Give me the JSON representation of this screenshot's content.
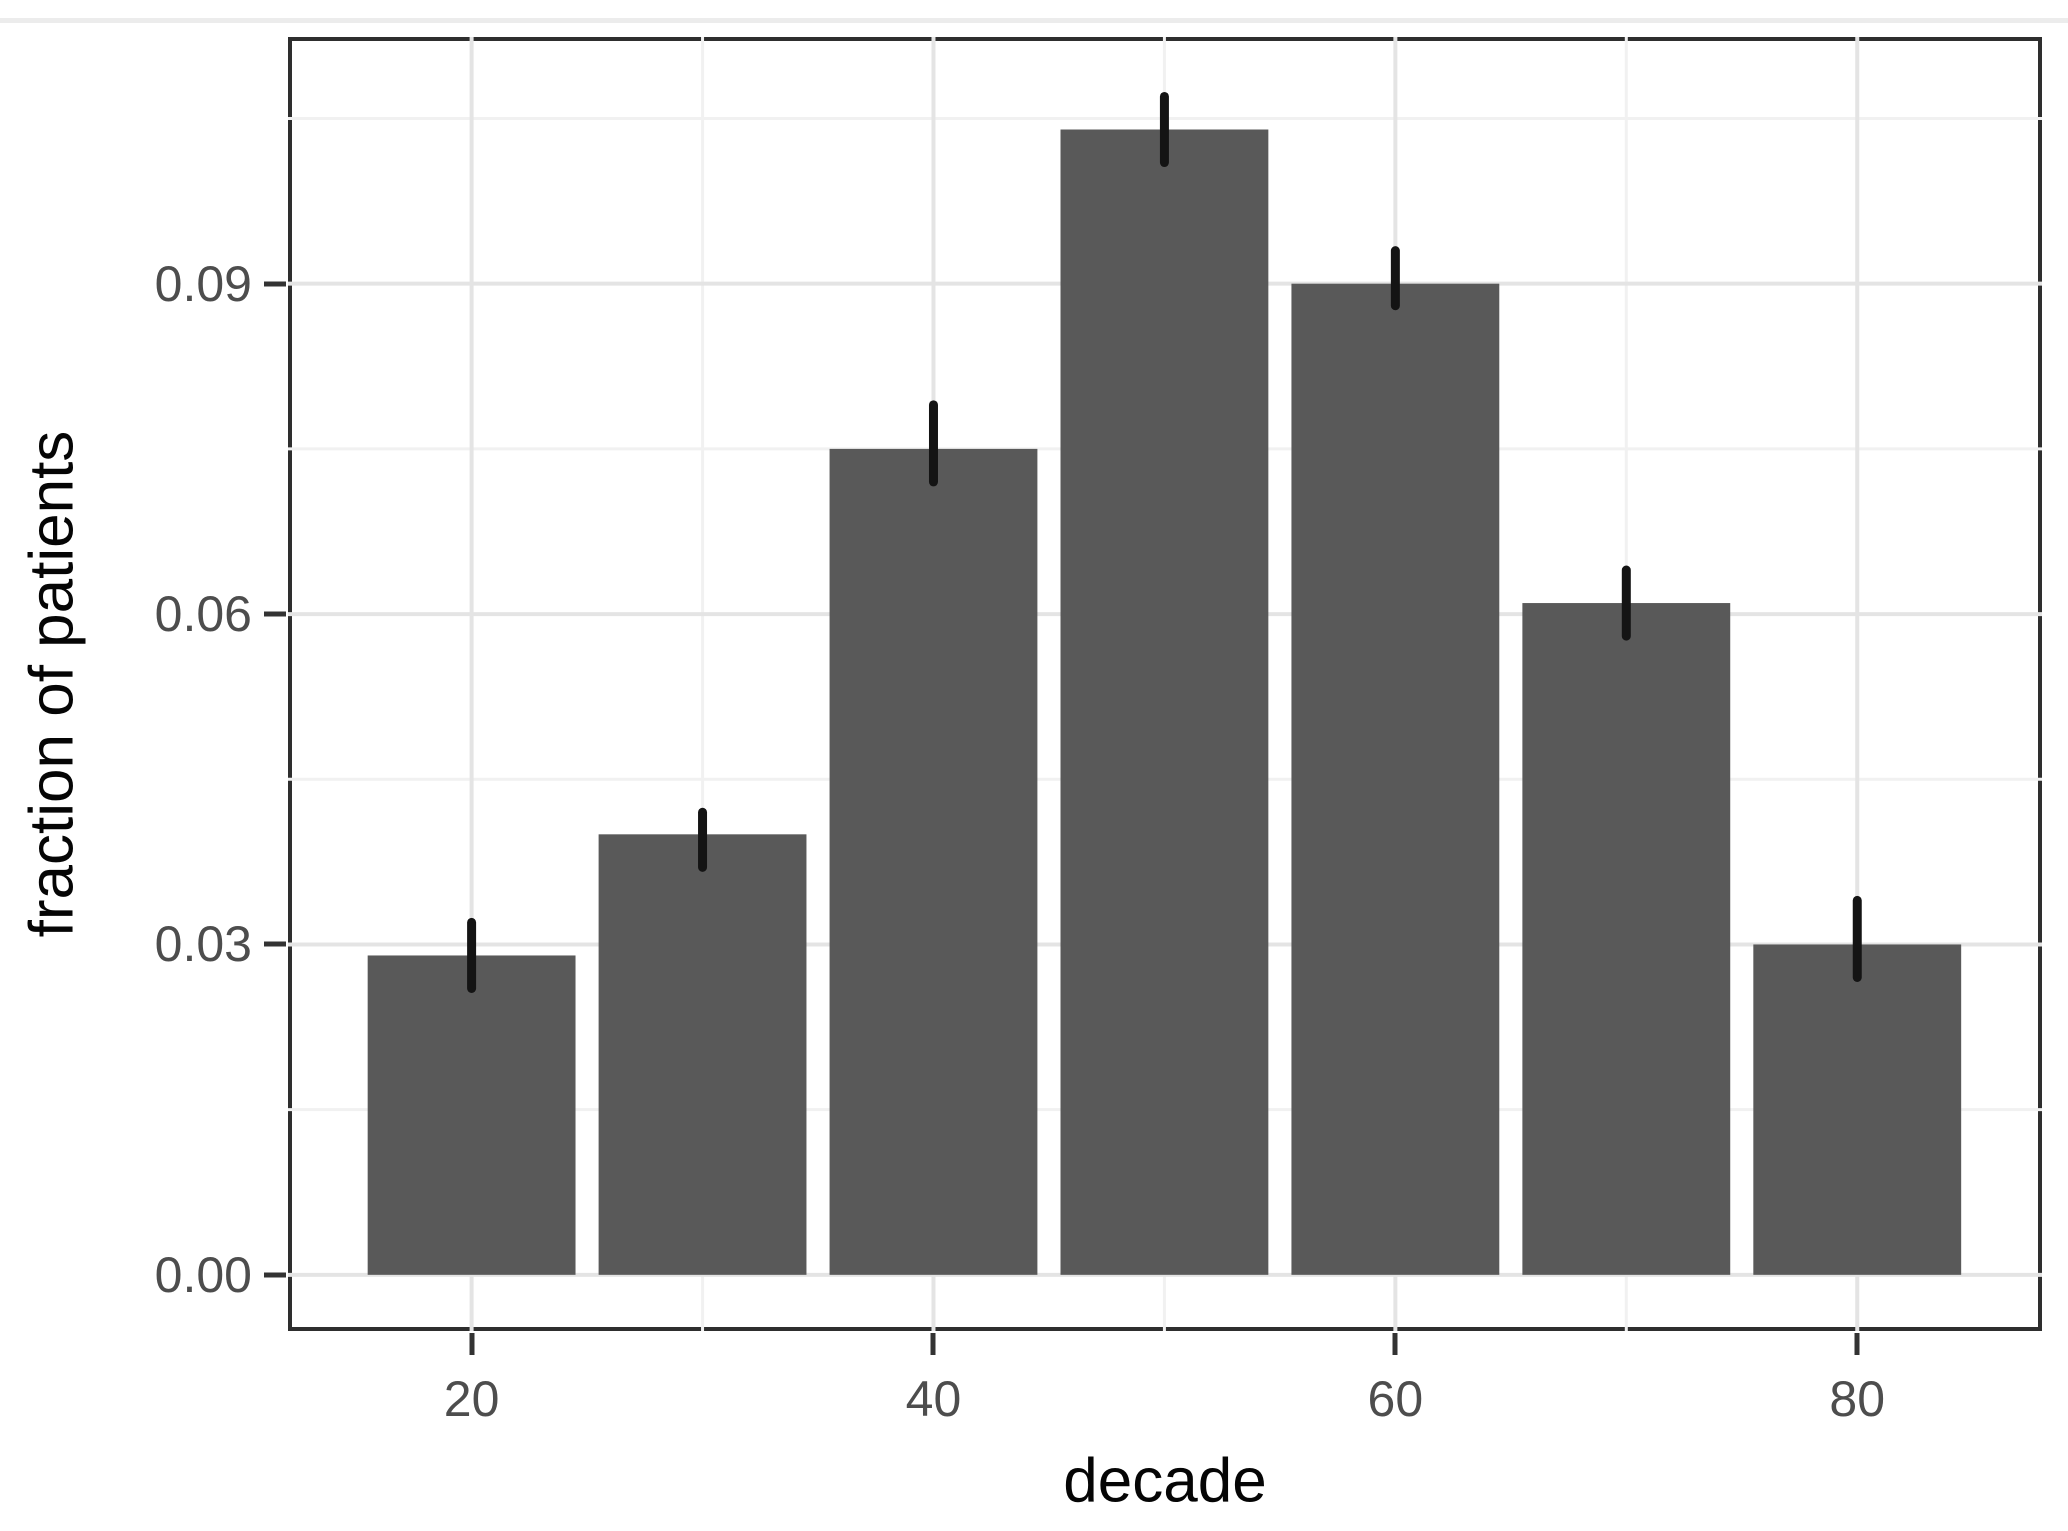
{
  "figure": {
    "kind": "ggplot-style bar chart with error bars",
    "background": "#ffffff"
  },
  "chart_data": {
    "type": "bar",
    "title": "",
    "xlabel": "decade",
    "ylabel": "fraction of patients",
    "categories": [
      20,
      30,
      40,
      50,
      60,
      70,
      80
    ],
    "values": [
      0.029,
      0.04,
      0.075,
      0.104,
      0.09,
      0.061,
      0.03
    ],
    "error_low": [
      0.026,
      0.037,
      0.072,
      0.101,
      0.088,
      0.058,
      0.027
    ],
    "error_high": [
      0.032,
      0.042,
      0.079,
      0.107,
      0.093,
      0.064,
      0.034
    ],
    "bar_width_units": 9,
    "x_ticks": [
      {
        "value": 20,
        "label": "20"
      },
      {
        "value": 40,
        "label": "40"
      },
      {
        "value": 60,
        "label": "60"
      },
      {
        "value": 80,
        "label": "80"
      }
    ],
    "y_ticks": [
      {
        "value": 0.0,
        "label": "0.00"
      },
      {
        "value": 0.03,
        "label": "0.03"
      },
      {
        "value": 0.06,
        "label": "0.06"
      },
      {
        "value": 0.09,
        "label": "0.09"
      }
    ],
    "x_minor_gridlines": [
      30,
      50,
      70
    ],
    "y_minor_gridlines": [
      0.015,
      0.045,
      0.075,
      0.105
    ],
    "x_domain": [
      12.05,
      88.0
    ],
    "y_domain": [
      -0.0051,
      0.1124
    ],
    "grid": true,
    "legend": false,
    "colors": {
      "bar_fill": "#595959",
      "error_bar": "#141414",
      "grid_major": "#e4e4e4",
      "grid_minor": "#f1f1f1",
      "panel_border": "#2e2e2e",
      "tick_mark": "#333333",
      "tick_label": "#4d4d4d",
      "axis_title": "#050505"
    }
  }
}
